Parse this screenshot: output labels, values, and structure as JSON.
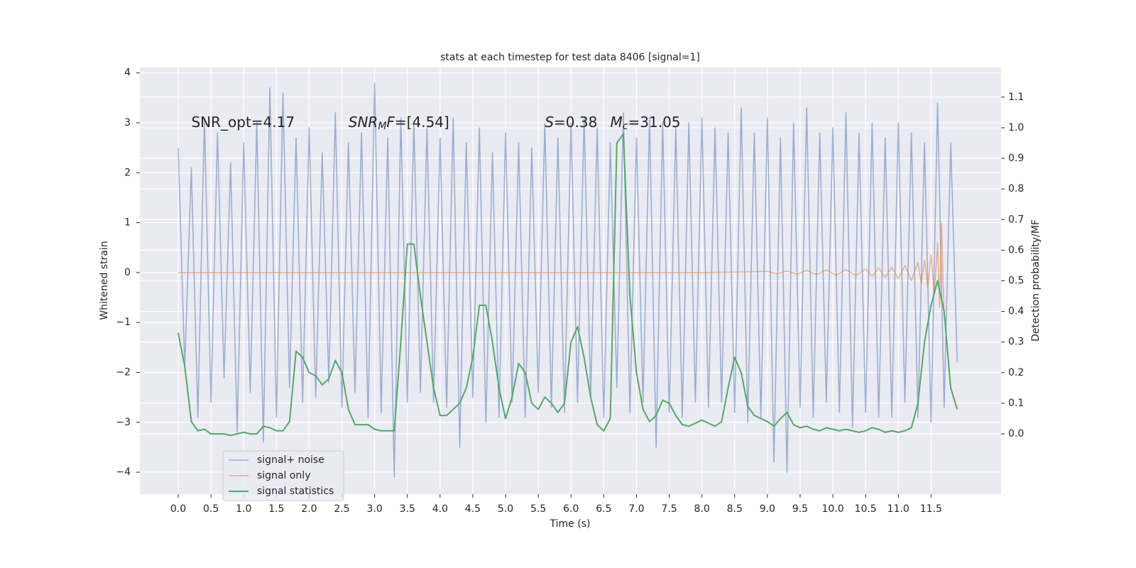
{
  "chart_data": {
    "type": "line",
    "title": "stats at each timestep for test data 8406 [signal=1]",
    "xlabel": "Time (s)",
    "ylabel": "Whitened strain",
    "y2label": "Detection probability/MF",
    "grid": true,
    "legend": "lower left",
    "xlim": [
      -0.586,
      12.57
    ],
    "ylim": [
      -4.44,
      4.11
    ],
    "y2lim": [
      -0.197,
      1.197
    ],
    "xticks": [
      {
        "value": 0,
        "label": "0.0"
      },
      {
        "value": 0.5,
        "label": "0.5"
      },
      {
        "value": 1,
        "label": "1.0"
      },
      {
        "value": 1.5,
        "label": "1.5"
      },
      {
        "value": 2,
        "label": "2.0"
      },
      {
        "value": 2.5,
        "label": "2.5"
      },
      {
        "value": 3,
        "label": "3.0"
      },
      {
        "value": 3.5,
        "label": "3.5"
      },
      {
        "value": 4,
        "label": "4.0"
      },
      {
        "value": 4.5,
        "label": "4.5"
      },
      {
        "value": 5,
        "label": "5.0"
      },
      {
        "value": 5.5,
        "label": "5.5"
      },
      {
        "value": 6,
        "label": "6.0"
      },
      {
        "value": 6.5,
        "label": "6.5"
      },
      {
        "value": 7,
        "label": "7.0"
      },
      {
        "value": 7.5,
        "label": "7.5"
      },
      {
        "value": 8,
        "label": "8.0"
      },
      {
        "value": 8.5,
        "label": "8.5"
      },
      {
        "value": 9,
        "label": "9.0"
      },
      {
        "value": 9.5,
        "label": "9.5"
      },
      {
        "value": 10,
        "label": "10.0"
      },
      {
        "value": 10.5,
        "label": "10.5"
      },
      {
        "value": 11,
        "label": "11.0"
      },
      {
        "value": 11.5,
        "label": "11.5"
      }
    ],
    "yticks": [
      {
        "value": -4,
        "label": "−4"
      },
      {
        "value": -3,
        "label": "−3"
      },
      {
        "value": -2,
        "label": "−2"
      },
      {
        "value": -1,
        "label": "−1"
      },
      0,
      1,
      2,
      3,
      4
    ],
    "y2ticks": [
      {
        "value": 0,
        "label": "0.0"
      },
      {
        "value": 0.1,
        "label": "0.1"
      },
      {
        "value": 0.2,
        "label": "0.2"
      },
      {
        "value": 0.3,
        "label": "0.3"
      },
      {
        "value": 0.4,
        "label": "0.4"
      },
      {
        "value": 0.5,
        "label": "0.5"
      },
      {
        "value": 0.6,
        "label": "0.6"
      },
      {
        "value": 0.7,
        "label": "0.7"
      },
      {
        "value": 0.8,
        "label": "0.8"
      },
      {
        "value": 0.9,
        "label": "0.9"
      },
      {
        "value": 1,
        "label": "1.0"
      },
      {
        "value": 1.1,
        "label": "1.1"
      }
    ],
    "x": [
      0.0,
      0.1,
      0.2,
      0.3,
      0.4,
      0.5,
      0.6,
      0.7,
      0.8,
      0.9,
      1.0,
      1.1,
      1.2,
      1.3,
      1.4,
      1.5,
      1.6,
      1.7,
      1.8,
      1.9,
      2.0,
      2.1,
      2.2,
      2.3,
      2.4,
      2.5,
      2.6,
      2.7,
      2.8,
      2.9,
      3.0,
      3.1,
      3.2,
      3.3,
      3.4,
      3.5,
      3.6,
      3.7,
      3.8,
      3.9,
      4.0,
      4.1,
      4.2,
      4.3,
      4.4,
      4.5,
      4.6,
      4.7,
      4.8,
      4.9,
      5.0,
      5.1,
      5.2,
      5.3,
      5.4,
      5.5,
      5.6,
      5.7,
      5.8,
      5.9,
      6.0,
      6.1,
      6.2,
      6.3,
      6.4,
      6.5,
      6.6,
      6.7,
      6.8,
      6.9,
      7.0,
      7.1,
      7.2,
      7.3,
      7.4,
      7.5,
      7.6,
      7.7,
      7.8,
      7.9,
      8.0,
      8.1,
      8.2,
      8.3,
      8.4,
      8.5,
      8.6,
      8.7,
      8.8,
      8.9,
      9.0,
      9.1,
      9.2,
      9.3,
      9.4,
      9.5,
      9.6,
      9.7,
      9.8,
      9.9,
      10.0,
      10.1,
      10.2,
      10.3,
      10.4,
      10.5,
      10.6,
      10.7,
      10.8,
      10.9,
      11.0,
      11.1,
      11.2,
      11.3,
      11.4,
      11.5,
      11.6,
      11.7,
      11.8,
      11.9
    ],
    "series": [
      {
        "name": "signal+ noise",
        "color": "#4c72b0",
        "values": [
          2.5,
          -1.9,
          2.1,
          -2.9,
          3.1,
          -2.6,
          2.8,
          -2.1,
          2.2,
          -3.2,
          2.6,
          -2.4,
          3.0,
          -3.4,
          3.7,
          -2.9,
          3.6,
          -2.3,
          2.7,
          -2.6,
          2.9,
          -2.5,
          2.4,
          -2.2,
          3.2,
          -2.7,
          2.6,
          -2.4,
          2.8,
          -2.9,
          3.8,
          -2.8,
          2.7,
          -4.1,
          3.1,
          -2.6,
          3.0,
          -2.4,
          2.9,
          -2.6,
          2.7,
          -2.7,
          3.1,
          -3.5,
          2.6,
          -2.5,
          2.9,
          -3.0,
          2.4,
          -2.9,
          2.8,
          -2.6,
          2.6,
          -2.9,
          2.5,
          -2.4,
          3.0,
          -2.7,
          2.7,
          -2.8,
          3.0,
          -2.6,
          3.1,
          -2.5,
          2.9,
          -2.9,
          2.6,
          -2.3,
          3.2,
          -2.8,
          2.7,
          -2.6,
          3.1,
          -3.5,
          3.0,
          -2.8,
          2.9,
          -2.9,
          3.0,
          -2.6,
          3.1,
          -2.7,
          2.9,
          -2.6,
          2.8,
          -2.8,
          3.3,
          -3.0,
          2.8,
          -2.9,
          3.1,
          -3.8,
          2.7,
          -4.0,
          3.0,
          -2.7,
          3.3,
          -2.9,
          2.8,
          -2.6,
          2.9,
          -2.8,
          3.2,
          -3.1,
          2.8,
          -2.8,
          3.0,
          -2.9,
          2.7,
          -2.9,
          3.0,
          -2.6,
          2.8,
          -2.9,
          2.6,
          -3.0,
          3.4,
          -2.7,
          2.6,
          -1.8
        ]
      },
      {
        "name": "signal only",
        "color": "#dd8452",
        "x": [
          0.0,
          8.0,
          9.0,
          9.15,
          9.3,
          9.45,
          9.6,
          9.75,
          9.9,
          10.05,
          10.2,
          10.35,
          10.5,
          10.6,
          10.7,
          10.8,
          10.9,
          11.0,
          11.1,
          11.2,
          11.3,
          11.35,
          11.4,
          11.45,
          11.5,
          11.55,
          11.6,
          11.63,
          11.66,
          11.7
        ],
        "values": [
          0,
          0,
          0.02,
          -0.02,
          0.03,
          -0.03,
          0.04,
          -0.04,
          0.05,
          -0.05,
          0.06,
          -0.06,
          0.07,
          -0.08,
          0.09,
          -0.1,
          0.11,
          -0.12,
          0.14,
          -0.16,
          0.2,
          -0.22,
          0.25,
          -0.3,
          0.35,
          -0.45,
          0.6,
          -0.7,
          1.0,
          -0.9
        ]
      },
      {
        "name": "signal statistics",
        "color": "#55a868",
        "axis": "y2",
        "values": [
          0.33,
          0.22,
          0.04,
          0.01,
          0.015,
          0.0,
          0.0,
          0.0,
          -0.005,
          0.0,
          0.005,
          0.0,
          0.0,
          0.025,
          0.02,
          0.01,
          0.01,
          0.04,
          0.27,
          0.25,
          0.2,
          0.19,
          0.16,
          0.18,
          0.24,
          0.2,
          0.08,
          0.03,
          0.03,
          0.03,
          0.015,
          0.01,
          0.01,
          0.01,
          0.3,
          0.62,
          0.62,
          0.45,
          0.3,
          0.15,
          0.06,
          0.06,
          0.08,
          0.1,
          0.15,
          0.25,
          0.42,
          0.42,
          0.3,
          0.15,
          0.05,
          0.12,
          0.23,
          0.2,
          0.1,
          0.08,
          0.12,
          0.1,
          0.07,
          0.1,
          0.3,
          0.35,
          0.25,
          0.12,
          0.03,
          0.01,
          0.05,
          0.95,
          0.98,
          0.45,
          0.2,
          0.08,
          0.04,
          0.06,
          0.11,
          0.1,
          0.06,
          0.03,
          0.025,
          0.035,
          0.045,
          0.035,
          0.025,
          0.04,
          0.15,
          0.25,
          0.2,
          0.09,
          0.06,
          0.05,
          0.04,
          0.025,
          0.05,
          0.07,
          0.03,
          0.02,
          0.025,
          0.015,
          0.01,
          0.02,
          0.015,
          0.01,
          0.015,
          0.01,
          0.005,
          0.01,
          0.02,
          0.015,
          0.005,
          0.01,
          0.005,
          0.01,
          0.02,
          0.1,
          0.3,
          0.42,
          0.5,
          0.4,
          0.15,
          0.08
        ]
      }
    ],
    "annotations": [
      {
        "parts": [
          {
            "text": "SNR_opt=4.17"
          }
        ]
      },
      {
        "parts": [
          {
            "text": "SNR",
            "italic": true
          },
          {
            "text": "M",
            "italic": true,
            "sub": true
          },
          {
            "text": "F",
            "italic": true
          },
          {
            "text": "=[4.54]"
          }
        ]
      },
      {
        "parts": [
          {
            "text": "S",
            "italic": true
          },
          {
            "text": "=0.38"
          }
        ]
      },
      {
        "parts": [
          {
            "text": "M",
            "italic": true
          },
          {
            "text": "c",
            "italic": true,
            "sub": true
          },
          {
            "text": "=31.05"
          }
        ]
      }
    ]
  }
}
